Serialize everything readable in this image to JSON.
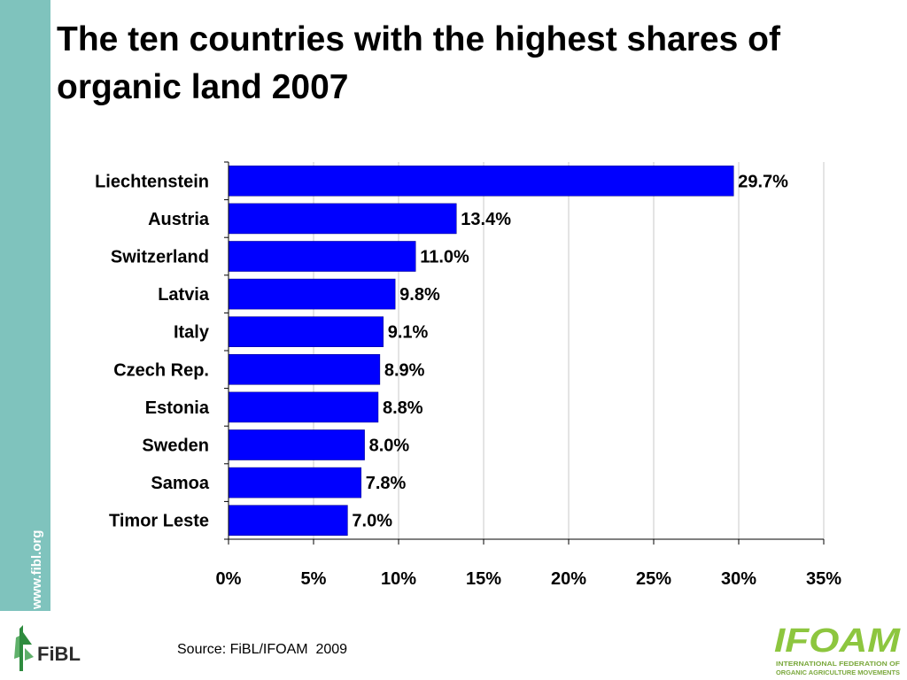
{
  "slide": {
    "title": "The ten countries with the highest shares of organic land 2007",
    "source": "Source: FiBL/IFOAM  2009",
    "website": "www.fibl.org"
  },
  "logos": {
    "fibl": "FiBL",
    "ifoam": "IFOAM",
    "ifoam_tagline_1": "INTERNATIONAL FEDERATION OF",
    "ifoam_tagline_2": "ORGANIC AGRICULTURE MOVEMENTS"
  },
  "colors": {
    "bar": "#0000ff",
    "sidebar": "#7fc3bd",
    "ifoam_green": "#8dc63f",
    "fibl_green": "#2e8b3e"
  },
  "chart_data": {
    "type": "bar",
    "orientation": "horizontal",
    "title": "",
    "xlabel": "",
    "ylabel": "",
    "categories": [
      "Liechtenstein",
      "Austria",
      "Switzerland",
      "Latvia",
      "Italy",
      "Czech Rep.",
      "Estonia",
      "Sweden",
      "Samoa",
      "Timor Leste"
    ],
    "values": [
      29.7,
      13.4,
      11.0,
      9.8,
      9.1,
      8.9,
      8.8,
      8.0,
      7.8,
      7.0
    ],
    "value_labels": [
      "29.7%",
      "13.4%",
      "11.0%",
      "9.8%",
      "9.1%",
      "8.9%",
      "8.8%",
      "8.0%",
      "7.8%",
      "7.0%"
    ],
    "xlim": [
      0,
      35
    ],
    "xticks": [
      0,
      5,
      10,
      15,
      20,
      25,
      30,
      35
    ],
    "xtick_labels": [
      "0%",
      "5%",
      "10%",
      "15%",
      "20%",
      "25%",
      "30%",
      "35%"
    ],
    "grid": "vertical",
    "legend": "none"
  }
}
